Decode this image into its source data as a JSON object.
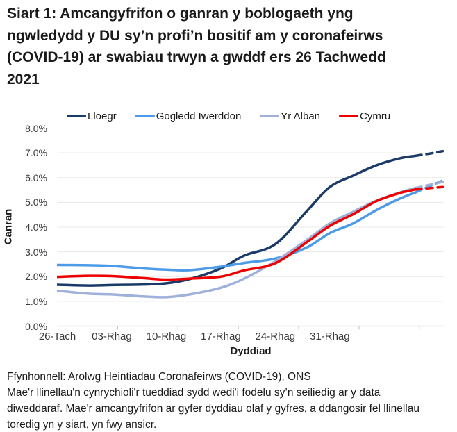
{
  "header": {
    "title_lines": [
      "Siart 1: Amcangyfrifon o ganran y boblogaeth yng",
      "ngwledydd y DU sy’n profi’n bositif am y coronafeirws",
      "(COVID-19) ar swabiau trwyn a gwddf ers 26 Tachwedd",
      "2021"
    ]
  },
  "chart_data": {
    "type": "line",
    "title": "Siart 1: Amcangyfrifon o ganran y boblogaeth yng ngwledydd y DU sy’n profi’n bositif am y coronafeirws (COVID-19) ar swabiau trwyn a gwddf ers 26 Tachwedd 2021",
    "xlabel": "Dyddiad",
    "ylabel": "Canran",
    "ylim": [
      0,
      8
    ],
    "y_tick_step": 1,
    "y_tick_labels": [
      "0.0%",
      "1.0%",
      "2.0%",
      "3.0%",
      "4.0%",
      "5.0%",
      "6.0%",
      "7.0%",
      "8.0%"
    ],
    "x_unit": "days since 26 Tachwedd 2021",
    "x_max_day": 49.6,
    "x_ticks": [
      {
        "day": 0,
        "label": "26-Tach"
      },
      {
        "day": 7,
        "label": "03-Rhag"
      },
      {
        "day": 14,
        "label": "10-Rhag"
      },
      {
        "day": 21,
        "label": "17-Rhag"
      },
      {
        "day": 28,
        "label": "24-Rhag"
      },
      {
        "day": 35,
        "label": "31-Rhag"
      }
    ],
    "grid": "horizontal",
    "legend_position": "top",
    "dashed_from_day": 46,
    "dashed_note": "final days of each series are drawn as dashed lines (more uncertain)",
    "x_days": [
      0,
      4,
      7,
      11,
      14,
      17,
      21,
      24,
      28,
      32,
      35,
      38,
      41,
      44,
      46,
      48,
      49.5
    ],
    "series": [
      {
        "name": "Lloegr",
        "color": "#1A3A68",
        "values": [
          1.67,
          1.64,
          1.66,
          1.68,
          1.73,
          1.9,
          2.33,
          2.85,
          3.31,
          4.63,
          5.62,
          6.08,
          6.5,
          6.78,
          6.88,
          6.98,
          7.07
        ]
      },
      {
        "name": "Gogledd Iwerddon",
        "color": "#4C9BE8",
        "values": [
          2.47,
          2.46,
          2.43,
          2.33,
          2.28,
          2.26,
          2.4,
          2.55,
          2.73,
          3.17,
          3.76,
          4.15,
          4.69,
          5.15,
          5.4,
          5.68,
          5.88
        ]
      },
      {
        "name": "Yr Alban",
        "color": "#9FB0DA",
        "values": [
          1.43,
          1.31,
          1.28,
          1.2,
          1.17,
          1.28,
          1.55,
          1.92,
          2.62,
          3.47,
          4.15,
          4.62,
          5.07,
          5.4,
          5.58,
          5.72,
          5.83
        ]
      },
      {
        "name": "Cymru",
        "color": "#EE0000",
        "values": [
          1.99,
          2.03,
          2.02,
          1.94,
          1.88,
          1.92,
          2.0,
          2.25,
          2.54,
          3.38,
          4.05,
          4.52,
          5.05,
          5.38,
          5.52,
          5.58,
          5.62
        ]
      }
    ],
    "style": {
      "gridline_color": "#E8E8E8",
      "axis_color": "#C8C8C8",
      "line_width": 3.5
    }
  },
  "footer": {
    "lines": [
      "Ffynhonnell: Arolwg Heintiadau Coronafeirws (COVID-19), ONS",
      "Mae'r llinellau'n cynrychioli'r tueddiad sydd wedi'i fodelu sy’n seiliedig ar y data",
      "diweddaraf. Mae'r amcangyfrifon ar gyfer dyddiau olaf y gyfres, a ddangosir fel llinellau",
      "toredig yn y siart, yn fwy ansicr."
    ]
  }
}
